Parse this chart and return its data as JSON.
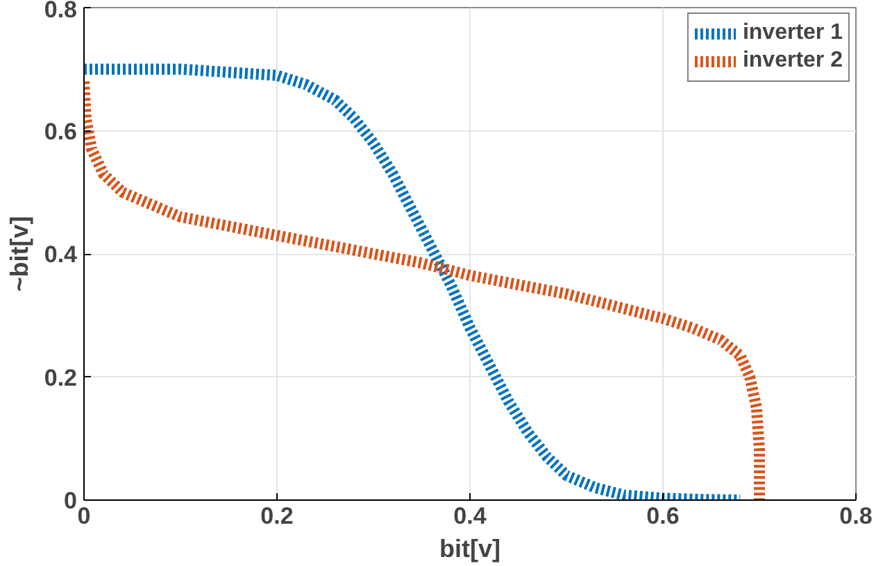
{
  "chart_data": {
    "type": "line",
    "xlabel": "bit[v]",
    "ylabel": "~bit[v]",
    "xlim": [
      0,
      0.8
    ],
    "ylim": [
      0,
      0.8
    ],
    "xticks": [
      0,
      0.2,
      0.4,
      0.6,
      0.8
    ],
    "yticks": [
      0,
      0.2,
      0.4,
      0.6,
      0.8
    ],
    "grid": true,
    "legend": "top right",
    "line_style": "dotted",
    "marker": "none",
    "series": [
      {
        "name": "inverter 1",
        "color": "#0072bd",
        "x": [
          0,
          0.1,
          0.15,
          0.2,
          0.23,
          0.26,
          0.28,
          0.3,
          0.32,
          0.34,
          0.36,
          0.38,
          0.4,
          0.42,
          0.44,
          0.46,
          0.48,
          0.5,
          0.53,
          0.56,
          0.6,
          0.64,
          0.68
        ],
        "values": [
          0.7,
          0.7,
          0.695,
          0.69,
          0.675,
          0.65,
          0.62,
          0.58,
          0.53,
          0.47,
          0.41,
          0.35,
          0.28,
          0.22,
          0.16,
          0.11,
          0.07,
          0.04,
          0.02,
          0.008,
          0.003,
          0.001,
          0
        ]
      },
      {
        "name": "inverter 2",
        "color": "#d95319",
        "x": [
          0,
          0.002,
          0.008,
          0.02,
          0.04,
          0.07,
          0.1,
          0.15,
          0.2,
          0.25,
          0.3,
          0.35,
          0.4,
          0.45,
          0.5,
          0.55,
          0.6,
          0.63,
          0.66,
          0.68,
          0.69,
          0.697,
          0.7,
          0.7
        ],
        "values": [
          0.68,
          0.62,
          0.57,
          0.53,
          0.5,
          0.48,
          0.46,
          0.445,
          0.43,
          0.415,
          0.4,
          0.385,
          0.365,
          0.35,
          0.335,
          0.315,
          0.295,
          0.28,
          0.26,
          0.235,
          0.2,
          0.15,
          0.08,
          0
        ]
      }
    ]
  }
}
